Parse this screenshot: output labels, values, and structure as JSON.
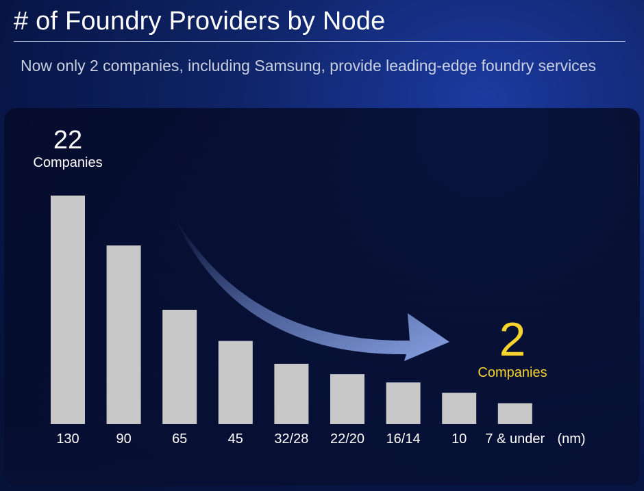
{
  "header": {
    "title": "# of Foundry Providers by Node",
    "subtitle": "Now only 2 companies, including Samsung, provide leading-edge foundry services"
  },
  "callouts": {
    "left": {
      "value": "22",
      "unit": "Companies"
    },
    "right": {
      "value": "2",
      "unit": "Companies"
    }
  },
  "chart_data": {
    "type": "bar",
    "categories": [
      "130",
      "90",
      "65",
      "45",
      "32/28",
      "22/20",
      "16/14",
      "10",
      "7 & under"
    ],
    "values": [
      22,
      17.2,
      11,
      8,
      5.8,
      4.8,
      4,
      3,
      2
    ],
    "x_unit": "(nm)",
    "ylim": [
      0,
      22
    ],
    "bar_color": "#c8c8c8",
    "accent_color": "#f7d32b",
    "arrow_color": "#7f9be0",
    "grid": false
  }
}
